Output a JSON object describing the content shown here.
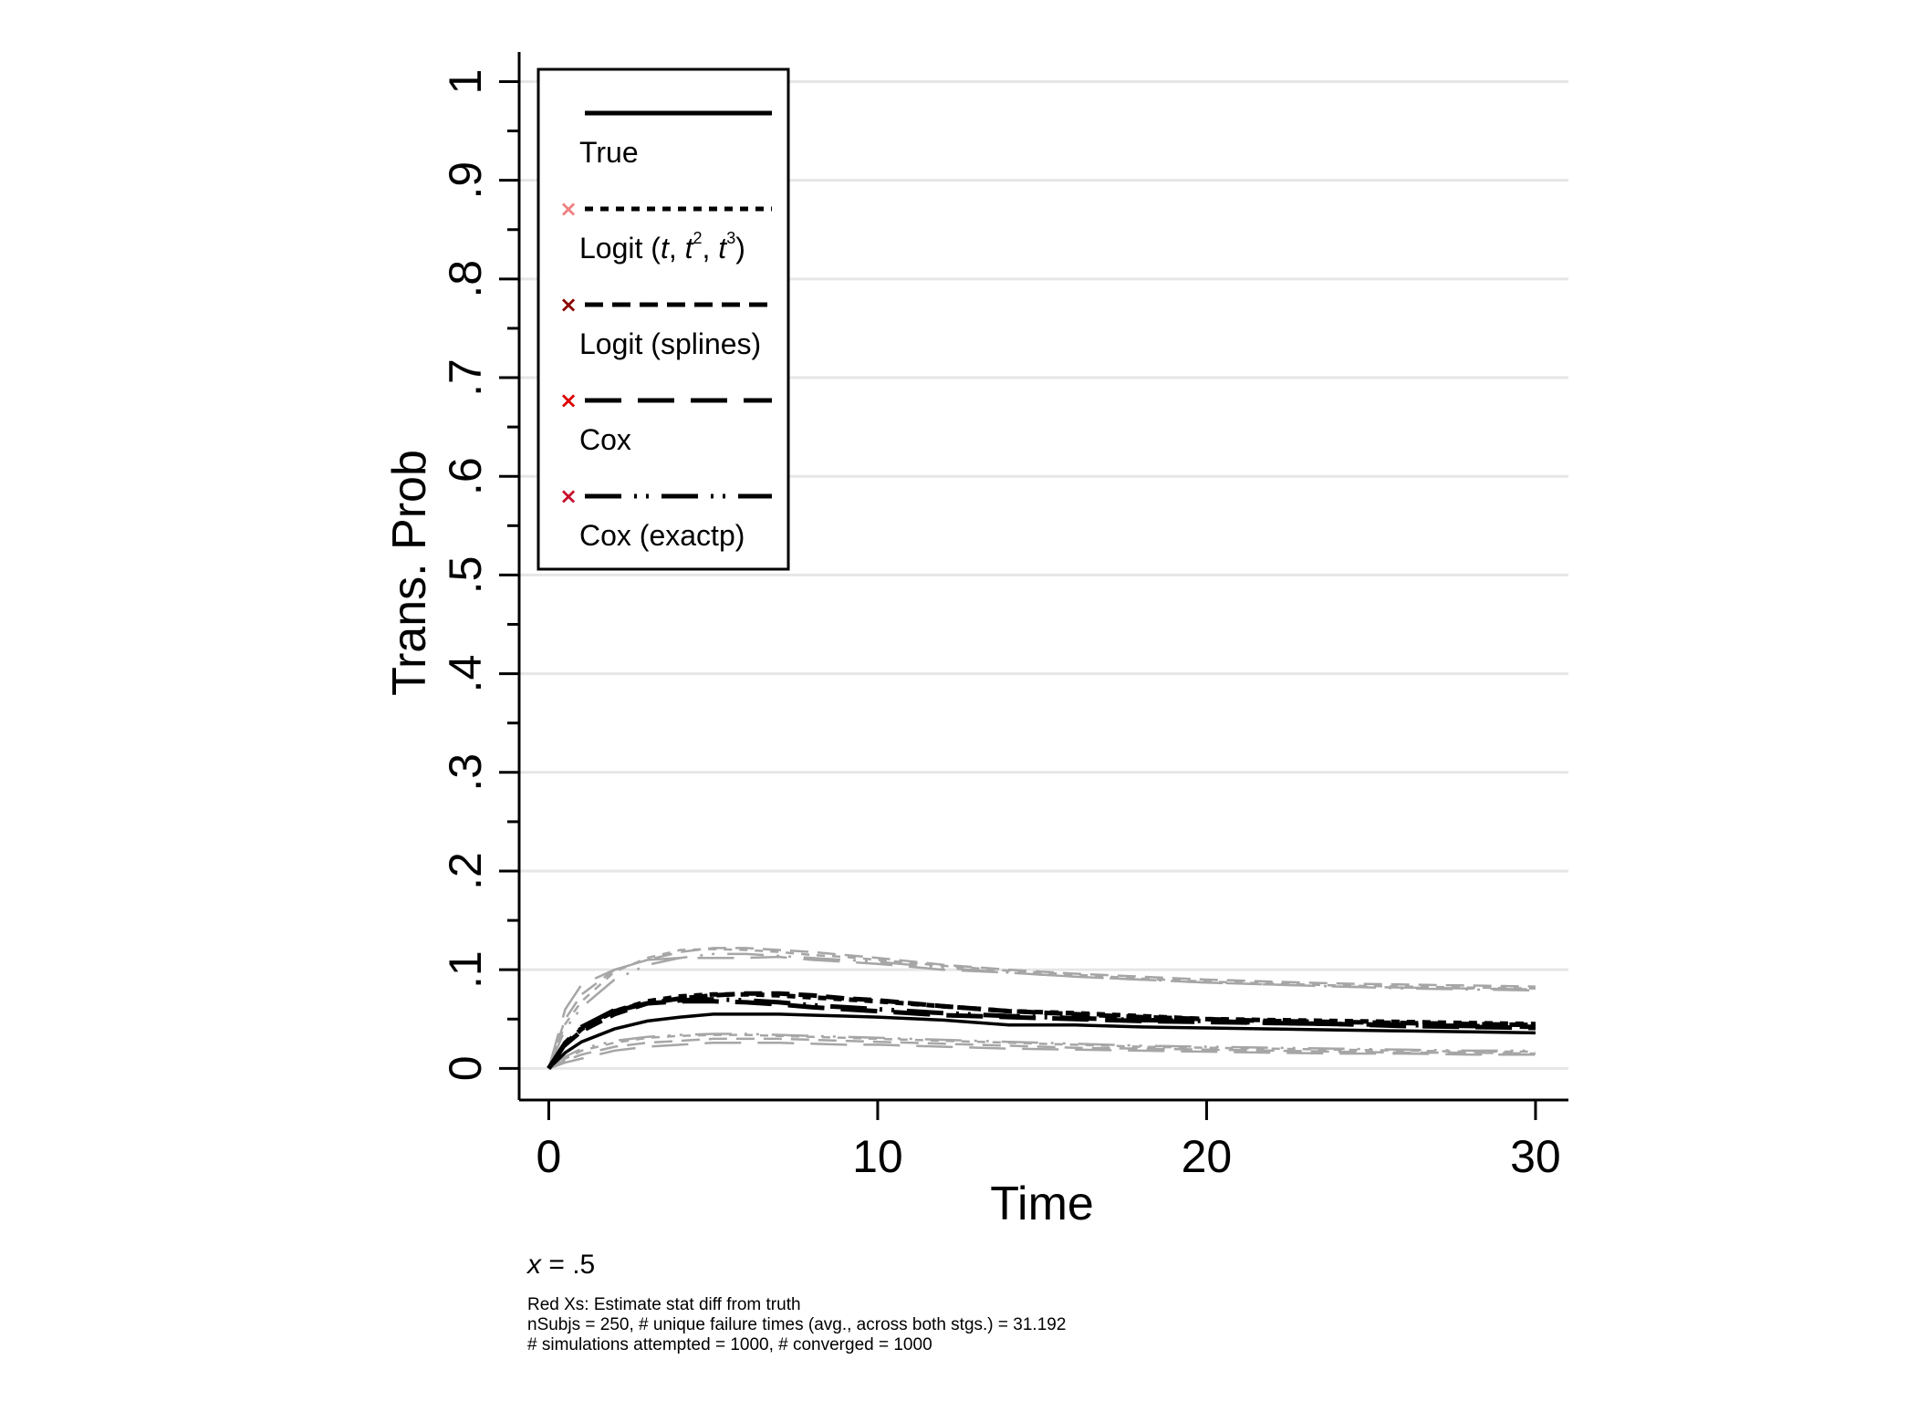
{
  "chart_data": {
    "type": "line",
    "ylabel": "Trans. Prob",
    "xlabel": "Time",
    "xlim": [
      -0.9,
      31
    ],
    "ylim": [
      -0.032,
      1.03
    ],
    "xticks": [
      0,
      10,
      20,
      30
    ],
    "xtick_labels": [
      "0",
      "10",
      "20",
      "30"
    ],
    "yticks": [
      0,
      0.1,
      0.2,
      0.3,
      0.4,
      0.5,
      0.6,
      0.7,
      0.8,
      0.9,
      1
    ],
    "ytick_labels": [
      "0",
      ".1",
      ".2",
      ".3",
      ".4",
      ".5",
      ".6",
      ".7",
      ".8",
      ".9",
      "1"
    ],
    "grid": "horizontal",
    "legend": {
      "position": "top-left",
      "entries": [
        {
          "label": "True",
          "style": "solid",
          "marker": "",
          "marker_color": ""
        },
        {
          "label_prefix": "Logit (",
          "italic_t": "t",
          "sup2": "2",
          "sup3": "3",
          "label_suffix": ")",
          "style": "dot",
          "marker": "×",
          "marker_color": "#f08080"
        },
        {
          "label": "Logit (splines)",
          "style": "dash",
          "marker": "×",
          "marker_color": "#8b0000"
        },
        {
          "label": "Cox",
          "style": "longdash",
          "marker": "×",
          "marker_color": "#dd0000"
        },
        {
          "label": "Cox (exactp)",
          "style": "longdash-dot",
          "marker": "×",
          "marker_color": "#c8102e"
        }
      ]
    },
    "x": [
      0,
      0.5,
      1,
      2,
      3,
      4,
      5,
      6,
      7,
      8,
      9,
      10,
      12,
      14,
      16,
      18,
      20,
      22,
      24,
      26,
      28,
      30
    ],
    "series": [
      {
        "name": "True",
        "style": "solid",
        "color": "#000000",
        "width": 3.5,
        "values": [
          0,
          0.016,
          0.027,
          0.04,
          0.048,
          0.052,
          0.055,
          0.055,
          0.055,
          0.054,
          0.053,
          0.052,
          0.049,
          0.044,
          0.044,
          0.042,
          0.041,
          0.04,
          0.039,
          0.038,
          0.037,
          0.036
        ]
      },
      {
        "name": "Logit (t, t2, t3)",
        "style": "dot",
        "color": "#000000",
        "width": 5,
        "values": [
          0,
          0.025,
          0.04,
          0.058,
          0.068,
          0.073,
          0.075,
          0.075,
          0.074,
          0.072,
          0.07,
          0.068,
          0.063,
          0.058,
          0.056,
          0.053,
          0.05,
          0.049,
          0.048,
          0.047,
          0.046,
          0.045
        ]
      },
      {
        "name": "Logit (splines)",
        "style": "dash",
        "color": "#000000",
        "width": 5,
        "values": [
          0,
          0.024,
          0.038,
          0.055,
          0.066,
          0.071,
          0.074,
          0.076,
          0.076,
          0.074,
          0.071,
          0.069,
          0.063,
          0.058,
          0.055,
          0.052,
          0.05,
          0.048,
          0.047,
          0.046,
          0.045,
          0.044
        ]
      },
      {
        "name": "Cox",
        "style": "longdash",
        "color": "#000000",
        "width": 5,
        "values": [
          0,
          0.026,
          0.042,
          0.059,
          0.066,
          0.068,
          0.068,
          0.067,
          0.065,
          0.062,
          0.06,
          0.058,
          0.054,
          0.052,
          0.05,
          0.048,
          0.047,
          0.046,
          0.045,
          0.043,
          0.042,
          0.041
        ]
      },
      {
        "name": "Cox (exactp)",
        "style": "longdash-dot",
        "color": "#000000",
        "width": 5,
        "values": [
          0,
          0.025,
          0.041,
          0.058,
          0.066,
          0.069,
          0.07,
          0.069,
          0.067,
          0.064,
          0.062,
          0.06,
          0.056,
          0.053,
          0.051,
          0.049,
          0.048,
          0.046,
          0.045,
          0.044,
          0.043,
          0.042
        ]
      }
    ],
    "bands": [
      {
        "style": "longdash",
        "values": [
          0,
          0.06,
          0.085,
          0.1,
          0.11,
          0.112,
          0.112,
          0.112,
          0.113,
          0.11,
          0.108,
          0.106,
          0.1,
          0.097,
          0.093,
          0.09,
          0.087,
          0.085,
          0.083,
          0.082,
          0.081,
          0.08
        ]
      },
      {
        "style": "dash",
        "values": [
          0,
          0.05,
          0.075,
          0.1,
          0.11,
          0.118,
          0.122,
          0.122,
          0.12,
          0.118,
          0.115,
          0.112,
          0.105,
          0.1,
          0.096,
          0.093,
          0.09,
          0.088,
          0.086,
          0.085,
          0.084,
          0.083
        ]
      },
      {
        "style": "dot",
        "values": [
          0,
          0.045,
          0.068,
          0.098,
          0.112,
          0.12,
          0.121,
          0.12,
          0.118,
          0.115,
          0.113,
          0.11,
          0.104,
          0.099,
          0.095,
          0.091,
          0.088,
          0.086,
          0.084,
          0.083,
          0.082,
          0.081
        ]
      },
      {
        "style": "longdash-dot",
        "values": [
          0,
          0.04,
          0.062,
          0.09,
          0.105,
          0.112,
          0.116,
          0.116,
          0.114,
          0.112,
          0.11,
          0.108,
          0.102,
          0.097,
          0.093,
          0.09,
          0.087,
          0.085,
          0.083,
          0.081,
          0.08,
          0.079
        ]
      },
      {
        "style": "longdash",
        "values": [
          0,
          0.006,
          0.01,
          0.018,
          0.022,
          0.024,
          0.026,
          0.026,
          0.026,
          0.025,
          0.024,
          0.024,
          0.022,
          0.02,
          0.019,
          0.018,
          0.017,
          0.016,
          0.015,
          0.015,
          0.014,
          0.014
        ]
      },
      {
        "style": "dash",
        "values": [
          0,
          0.008,
          0.014,
          0.022,
          0.026,
          0.028,
          0.03,
          0.03,
          0.03,
          0.029,
          0.028,
          0.027,
          0.025,
          0.023,
          0.021,
          0.02,
          0.019,
          0.018,
          0.017,
          0.016,
          0.016,
          0.015
        ]
      },
      {
        "style": "dot",
        "values": [
          0,
          0.01,
          0.018,
          0.026,
          0.031,
          0.033,
          0.034,
          0.034,
          0.033,
          0.032,
          0.031,
          0.03,
          0.028,
          0.026,
          0.024,
          0.022,
          0.021,
          0.02,
          0.019,
          0.018,
          0.017,
          0.017
        ]
      },
      {
        "style": "longdash-dot",
        "values": [
          0,
          0.012,
          0.02,
          0.028,
          0.032,
          0.034,
          0.035,
          0.035,
          0.034,
          0.033,
          0.032,
          0.031,
          0.029,
          0.027,
          0.025,
          0.023,
          0.022,
          0.021,
          0.02,
          0.019,
          0.018,
          0.018
        ]
      }
    ],
    "band_color": "#a6a6a6"
  },
  "notes": {
    "condition_var": "x",
    "condition_rest": " = .5",
    "line1": "Red Xs: Estimate stat diff from truth",
    "line2": "nSubjs = 250, # unique failure times (avg., across both stgs.) = 31.192",
    "line3": "# simulations attempted = 1000, # converged = 1000"
  }
}
